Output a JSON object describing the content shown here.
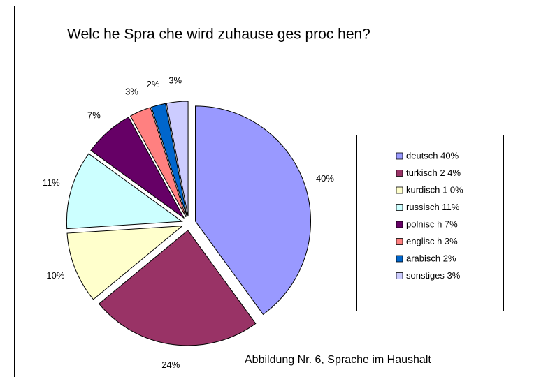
{
  "chart_data": {
    "type": "pie",
    "title": "Welc he Spra che wird zuhause ges proc hen?",
    "caption": "Abbildung Nr. 6, Sprache im Haushalt",
    "categories": [
      "deutsch  40%",
      "türkisch 2 4%",
      "kurdisch 1 0%",
      "russisch  11%",
      "polnisc h 7%",
      "englisc h 3%",
      "arabisch  2%",
      "sonstiges 3%"
    ],
    "values": [
      40,
      24,
      10,
      11,
      7,
      3,
      2,
      3
    ],
    "value_labels": [
      "40%",
      "24%",
      "10%",
      "11%",
      "7%",
      "3%",
      "2%",
      "3%"
    ],
    "colors": [
      "#9999ff",
      "#993366",
      "#ffffcc",
      "#ccffff",
      "#660066",
      "#ff8080",
      "#0066cc",
      "#ccccff"
    ],
    "legend": "right"
  }
}
